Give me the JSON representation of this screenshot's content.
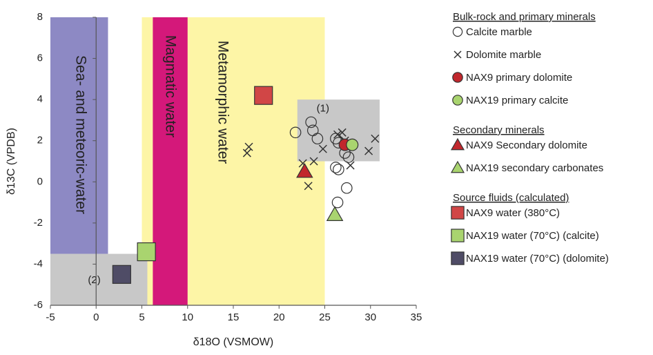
{
  "chart_data": {
    "type": "scatter",
    "xlabel": "δ18O (VSMOW)",
    "ylabel": "δ13C (VPDB)",
    "xlim": [
      -5,
      35
    ],
    "ylim": [
      -6,
      8
    ],
    "x_ticks": [
      -5,
      0,
      5,
      10,
      15,
      20,
      25,
      30,
      35
    ],
    "y_ticks": [
      -6,
      -4,
      -2,
      0,
      2,
      4,
      6,
      8
    ],
    "regions": [
      {
        "name": "sea-meteoric-water",
        "label": "Sea- and meteoric-water",
        "x": [
          -5,
          1.3
        ],
        "y": [
          -3.5,
          8
        ],
        "color": "#8d89c4"
      },
      {
        "name": "magmatic-water",
        "label": "Magmatic water",
        "x": [
          6.2,
          10
        ],
        "y": [
          -6,
          8
        ],
        "color": "#d4187a"
      },
      {
        "name": "metamorphic-water",
        "label": "Metamorphic water",
        "x": [
          5,
          25
        ],
        "y": [
          -6,
          8
        ],
        "color": "#fdf5a6"
      },
      {
        "name": "grey-box-1",
        "label": "(1)",
        "x": [
          22,
          31
        ],
        "y": [
          1,
          4
        ],
        "color": "#c8c8c8"
      },
      {
        "name": "grey-box-2",
        "label": "(2)",
        "x": [
          -5,
          5.6
        ],
        "y": [
          -6,
          -3.5
        ],
        "color": "#c8c8c8"
      }
    ],
    "series": [
      {
        "name": "Calcite marble",
        "marker": "circle-open",
        "color": "#333333",
        "points": [
          [
            21.8,
            2.4
          ],
          [
            23.5,
            2.9
          ],
          [
            23.7,
            2.5
          ],
          [
            24.2,
            2.1
          ],
          [
            26.2,
            2.1
          ],
          [
            26.5,
            1.9
          ],
          [
            27.2,
            1.4
          ],
          [
            27.6,
            1.2
          ],
          [
            26.2,
            0.7
          ],
          [
            26.5,
            0.6
          ],
          [
            27.4,
            -0.3
          ],
          [
            26.4,
            -1.0
          ]
        ]
      },
      {
        "name": "Dolomite marble",
        "marker": "cross",
        "color": "#333333",
        "points": [
          [
            16.5,
            1.4
          ],
          [
            16.7,
            1.7
          ],
          [
            22.6,
            0.9
          ],
          [
            23.2,
            -0.2
          ],
          [
            23.8,
            1.0
          ],
          [
            24.8,
            1.6
          ],
          [
            26.4,
            2.3
          ],
          [
            26.9,
            2.4
          ],
          [
            27.2,
            2.0
          ],
          [
            27.8,
            0.8
          ],
          [
            29.8,
            1.5
          ],
          [
            30.5,
            2.1
          ]
        ]
      },
      {
        "name": "NAX9 primary dolomite",
        "marker": "circle",
        "color": "#c1272d",
        "points": [
          [
            27.2,
            1.8
          ]
        ]
      },
      {
        "name": "NAX19 primary calcite",
        "marker": "circle",
        "color": "#a9d46f",
        "points": [
          [
            28.0,
            1.8
          ]
        ]
      },
      {
        "name": "NAX9 Secondary dolomite",
        "marker": "triangle",
        "color": "#c1272d",
        "points": [
          [
            22.8,
            0.5
          ]
        ]
      },
      {
        "name": "NAX19 secondary carbonates",
        "marker": "triangle",
        "color": "#a9d46f",
        "points": [
          [
            26.1,
            -1.6
          ]
        ]
      },
      {
        "name": "NAX9 water (380°C)",
        "marker": "square",
        "color": "#d14646",
        "points": [
          [
            18.3,
            4.2
          ]
        ]
      },
      {
        "name": "NAX19 water (70°C) (calcite)",
        "marker": "square",
        "color": "#a9d46f",
        "points": [
          [
            5.5,
            -3.4
          ]
        ]
      },
      {
        "name": "NAX19 water (70°C) (dolomite)",
        "marker": "square",
        "color": "#4f4c66",
        "points": [
          [
            2.8,
            -4.5
          ]
        ]
      }
    ],
    "legend": {
      "placement": "right",
      "groups": [
        {
          "header": "Bulk-rock and primary minerals",
          "items": [
            0,
            1,
            2,
            3
          ]
        },
        {
          "header": "Secondary minerals",
          "items": [
            4,
            5
          ]
        },
        {
          "header": "Source fluids (calculated)",
          "items": [
            6,
            7,
            8
          ]
        }
      ]
    }
  }
}
